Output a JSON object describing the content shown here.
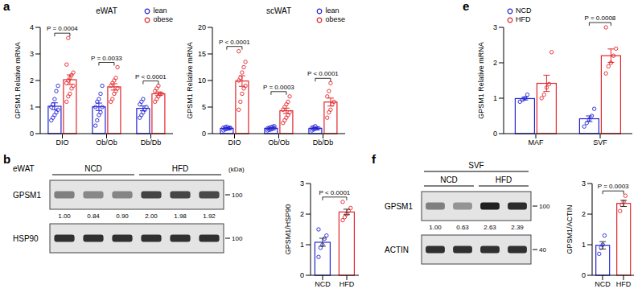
{
  "chart_data": [
    {
      "panel": "a",
      "type": "bar",
      "title": "eWAT",
      "y_label": "GPSM1 Relative mRNA",
      "categories": [
        "DIO",
        "Ob/Ob",
        "Db/Db"
      ],
      "series": [
        {
          "name": "lean",
          "color": "#2424d6",
          "values": [
            1.03,
            1.01,
            0.95
          ],
          "errors": [
            0.13,
            0.14,
            0.09
          ],
          "points": [
            [
              0.5,
              0.6,
              0.7,
              0.8,
              0.9,
              1.0,
              1.1,
              1.3,
              1.6,
              1.8
            ],
            [
              0.3,
              0.5,
              0.7,
              0.8,
              1.0,
              1.0,
              1.2,
              1.3,
              1.5,
              1.8
            ],
            [
              0.6,
              0.7,
              0.8,
              0.9,
              1.0,
              1.1,
              1.2,
              1.3
            ]
          ]
        },
        {
          "name": "obese",
          "color": "#e3262b",
          "values": [
            2.03,
            1.76,
            1.5
          ],
          "errors": [
            0.18,
            0.12,
            0.07
          ],
          "points": [
            [
              1.2,
              1.4,
              1.5,
              1.7,
              1.8,
              1.9,
              2.0,
              2.1,
              2.2,
              2.3,
              2.6,
              3.6
            ],
            [
              1.2,
              1.3,
              1.5,
              1.6,
              1.7,
              1.8,
              1.9,
              2.0,
              2.1,
              2.5
            ],
            [
              1.2,
              1.3,
              1.4,
              1.5,
              1.5,
              1.6,
              1.7,
              1.8
            ]
          ]
        }
      ],
      "p_values": [
        "P = 0.0004",
        "P = 0.0033",
        "P < 0.0001"
      ],
      "ylim": [
        0,
        4
      ],
      "yticks": [
        0,
        1,
        2,
        3,
        4
      ],
      "legend": "upper right",
      "marker": "circle"
    },
    {
      "type": "bar",
      "title": "scWAT",
      "y_label": "GPSM1 Relative mRNA",
      "categories": [
        "DIO",
        "Ob/Ob",
        "Db/Db"
      ],
      "series": [
        {
          "name": "lean",
          "color": "#2424d6",
          "values": [
            1.0,
            1.0,
            1.0
          ],
          "errors": [
            0.07,
            0.08,
            0.09
          ],
          "points": [
            [
              0.6,
              0.8,
              0.9,
              1.0,
              1.0,
              1.1,
              1.2,
              1.3,
              1.0,
              1.1
            ],
            [
              0.6,
              0.7,
              0.8,
              0.9,
              1.0,
              1.0,
              1.1,
              1.2,
              1.3,
              1.4
            ],
            [
              0.6,
              0.8,
              0.9,
              1.0,
              1.0,
              1.1,
              1.2,
              1.4
            ]
          ]
        },
        {
          "name": "obese",
          "color": "#e3262b",
          "values": [
            9.9,
            4.3,
            5.94
          ],
          "errors": [
            1.0,
            0.5,
            0.75
          ],
          "points": [
            [
              4.5,
              6.0,
              7.5,
              8.5,
              9.0,
              10.0,
              10.5,
              11.5,
              12.5,
              13.5,
              15.5
            ],
            [
              2.0,
              2.5,
              3.0,
              3.5,
              4.0,
              4.5,
              5.0,
              5.5,
              6.0,
              7.0
            ],
            [
              3.0,
              4.0,
              4.5,
              5.5,
              6.0,
              7.0,
              8.0,
              9.5
            ]
          ]
        }
      ],
      "p_values": [
        "P < 0.0001",
        "P = 0.0003",
        "P < 0.0001"
      ],
      "ylim": [
        0,
        20
      ],
      "yticks": [
        0,
        5,
        10,
        15,
        20
      ],
      "legend": "upper right",
      "marker": "circle"
    },
    {
      "panel": "e",
      "type": "bar",
      "y_label": "GPSM1 Relative mRNA",
      "categories": [
        "MAF",
        "SVF"
      ],
      "series": [
        {
          "name": "NCD",
          "color": "#2424d6",
          "values": [
            0.99,
            0.42
          ],
          "errors": [
            0.04,
            0.08
          ],
          "points": [
            [
              0.9,
              0.95,
              1.0,
              1.1
            ],
            [
              0.2,
              0.3,
              0.4,
              0.5,
              0.7
            ]
          ]
        },
        {
          "name": "HFD",
          "color": "#e3262b",
          "values": [
            1.42,
            2.2
          ],
          "errors": [
            0.23,
            0.19
          ],
          "points": [
            [
              1.0,
              1.1,
              1.3,
              1.4,
              2.3
            ],
            [
              1.7,
              1.9,
              2.0,
              2.2,
              2.4,
              3.0
            ]
          ]
        }
      ],
      "p_values": [
        null,
        "P = 0.0008"
      ],
      "ylim": [
        0,
        3
      ],
      "yticks": [
        0,
        1,
        2,
        3
      ],
      "legend": "upper left",
      "marker": "circle"
    },
    {
      "type": "bar",
      "y_label": "GPSM1/HSP90",
      "categories": [
        "NCD",
        "HFD"
      ],
      "values": [
        1.08,
        2.07
      ],
      "errors": [
        0.13,
        0.09
      ],
      "points": [
        [
          0.6,
          0.9,
          1.0,
          1.2,
          1.3,
          1.5
        ],
        [
          1.8,
          1.9,
          2.0,
          2.1,
          2.2,
          2.4
        ]
      ],
      "colors": [
        "#2424d6",
        "#e3262b"
      ],
      "p_value": "P < 0.0001",
      "ylim": [
        0,
        3
      ],
      "yticks": [
        0,
        1,
        2,
        3
      ],
      "marker": "circle"
    },
    {
      "type": "bar",
      "y_label": "GPSM1/ACTIN",
      "categories": [
        "NCD",
        "HFD"
      ],
      "values": [
        0.98,
        2.35
      ],
      "errors": [
        0.12,
        0.1
      ],
      "points": [
        [
          0.7,
          0.9,
          1.0,
          1.3
        ],
        [
          2.1,
          2.3,
          2.4,
          2.6
        ]
      ],
      "colors": [
        "#2424d6",
        "#e3262b"
      ],
      "p_value": "P = 0.0003",
      "ylim": [
        0,
        3
      ],
      "yticks": [
        0,
        1,
        2,
        3
      ],
      "marker": "circle"
    }
  ],
  "blots": [
    {
      "panel": "b",
      "tissue": "eWAT",
      "groups": [
        "NCD",
        "HFD"
      ],
      "unit": "(kDa)",
      "rows": [
        {
          "name": "GPSM1",
          "kda": 100,
          "values": [
            1.0,
            0.84,
            0.9,
            2.0,
            1.98,
            1.92
          ],
          "value_labels": [
            "1.00",
            "0.84",
            "0.90",
            "2.00",
            "1.98",
            "1.92"
          ]
        },
        {
          "name": "HSP90",
          "kda": 100
        }
      ]
    },
    {
      "panel": "f",
      "header": "SVF",
      "groups": [
        "NCD",
        "HFD"
      ],
      "rows": [
        {
          "name": "GPSM1",
          "kda": 100,
          "values": [
            1.0,
            0.63,
            2.63,
            2.39
          ],
          "value_labels": [
            "1.00",
            "0.63",
            "2.63",
            "2.39"
          ]
        },
        {
          "name": "ACTIN",
          "kda": 40
        }
      ]
    }
  ]
}
